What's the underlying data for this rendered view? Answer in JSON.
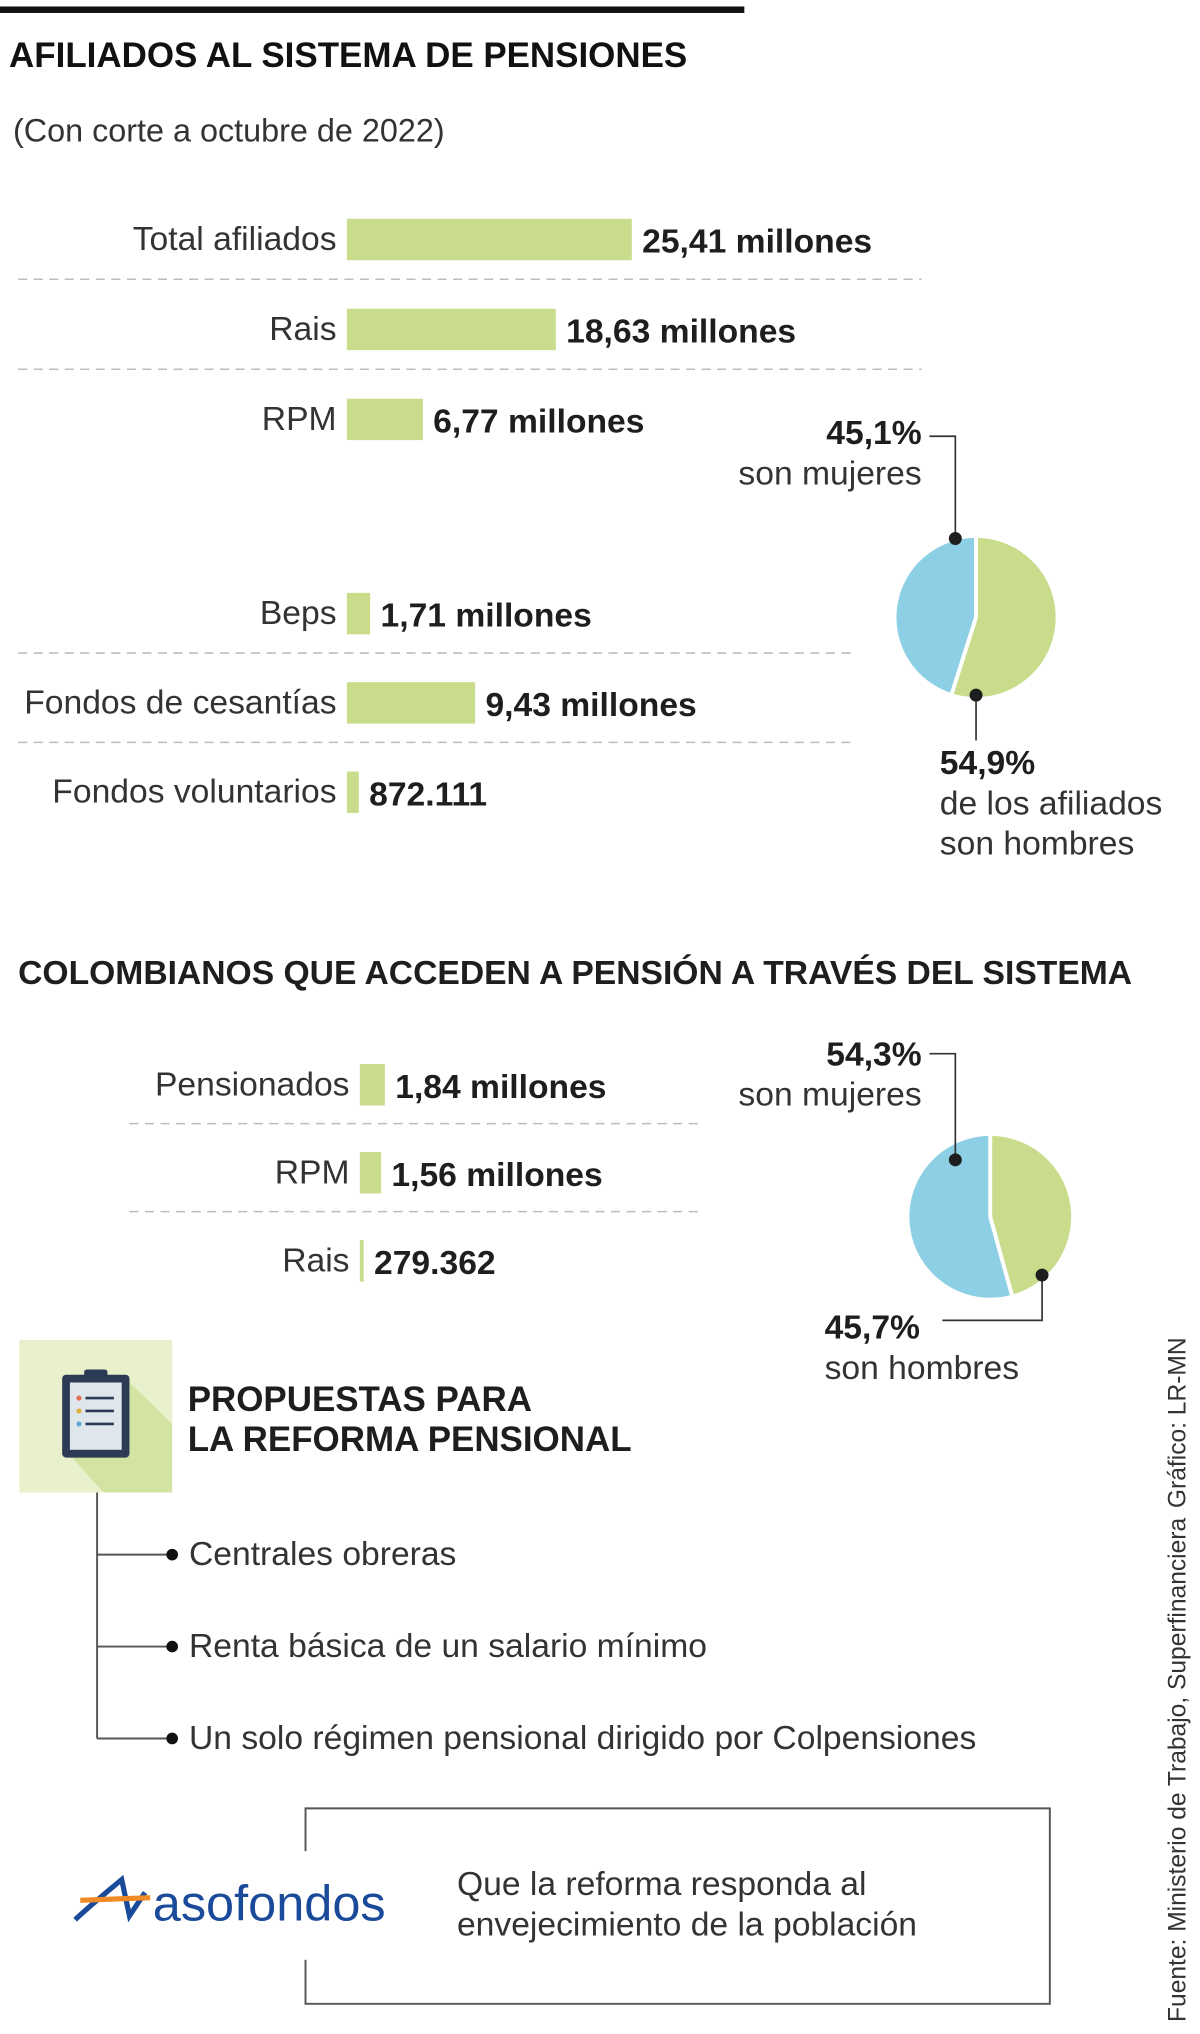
{
  "header": {
    "title": "AFILIADOS AL SISTEMA DE PENSIONES",
    "subtitle": "(Con corte a octubre de 2022)"
  },
  "chart_data": [
    {
      "type": "bar",
      "categories": [
        "Total afiliados",
        "Rais",
        "RPM"
      ],
      "values": [
        25.41,
        18.63,
        6.77
      ],
      "value_labels": [
        "25,41 millones",
        "18,63 millones",
        "6,77 millones"
      ],
      "color": "#c8dc8c"
    },
    {
      "type": "bar",
      "categories": [
        "Beps",
        "Fondos de cesantías",
        "Fondos voluntarios"
      ],
      "values": [
        1.71,
        9.43,
        0.872111
      ],
      "value_labels": [
        "1,71 millones",
        "9,43 millones",
        "872.111"
      ],
      "color": "#c8dc8c"
    },
    {
      "type": "pie",
      "values": [
        45.1,
        54.9
      ],
      "value_labels": [
        "45,1%",
        "54,9%"
      ],
      "labels": [
        [
          "son mujeres"
        ],
        [
          "de los afiliados",
          "son hombres"
        ]
      ],
      "colors": [
        "#8dd0e6",
        "#c8dc8c"
      ]
    },
    {
      "type": "bar",
      "title": "COLOMBIANOS QUE ACCEDEN A PENSIÓN A TRAVÉS DEL SISTEMA",
      "categories": [
        "Pensionados",
        "RPM",
        "Rais"
      ],
      "values": [
        1.84,
        1.56,
        0.279362
      ],
      "value_labels": [
        "1,84 millones",
        "1,56 millones",
        "279.362"
      ],
      "color": "#c8dc8c"
    },
    {
      "type": "pie",
      "values": [
        54.3,
        45.7
      ],
      "value_labels": [
        "54,3%",
        "45,7%"
      ],
      "labels": [
        [
          "son mujeres"
        ],
        [
          "son hombres"
        ]
      ],
      "colors": [
        "#8dd0e6",
        "#c8dc8c"
      ]
    }
  ],
  "proposals": {
    "title": [
      "PROPUESTAS PARA",
      "LA REFORMA PENSIONAL"
    ],
    "items": [
      "Centrales obreras",
      "Renta básica de un salario mínimo",
      "Un solo régimen pensional dirigido por Colpensiones"
    ]
  },
  "asofondos": {
    "logo": "asofondos",
    "quote": [
      "Que la reforma responda al",
      "envejecimiento de la población"
    ]
  },
  "credits": {
    "graphic": "Gráfico: LR-MN",
    "source": "Fuente: Ministerio de Trabajo, Superfinanciera"
  }
}
